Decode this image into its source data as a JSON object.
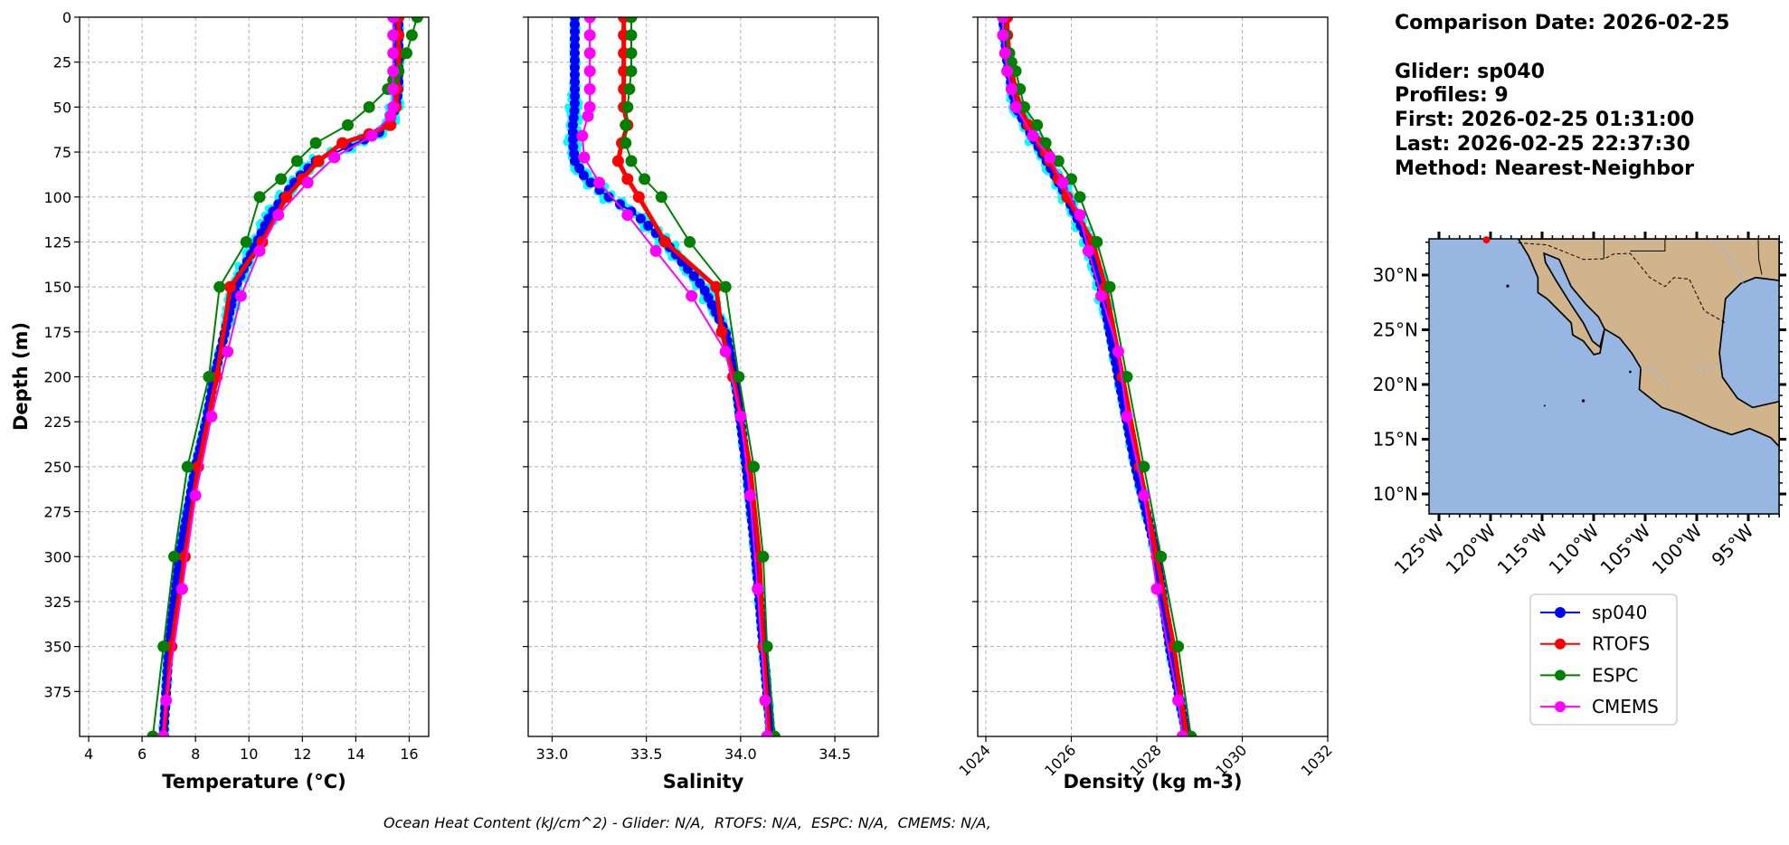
{
  "info": {
    "comparison_date": "Comparison Date: 2026-02-25",
    "glider": "Glider: sp040",
    "profiles": "Profiles: 9",
    "first": "First: 2026-02-25 01:31:00",
    "last": "Last: 2026-02-25 22:37:30",
    "method": "Method: Nearest-Neighbor"
  },
  "footer": "Ocean Heat Content (kJ/cm^2) - Glider: N/A,  RTOFS: N/A,  ESPC: N/A,  CMEMS: N/A,",
  "colors": {
    "sp040": "#0000ff",
    "RTOFS": "#ff0000",
    "ESPC": "#008000",
    "CMEMS": "#ff00ff",
    "profiles": "#00ffff",
    "ocean": "#97b6e1",
    "land": "#d1b48c"
  },
  "chart_data": [
    {
      "type": "line",
      "key": "temperature",
      "xlabel": "Temperature (°C)",
      "ylabel": "Depth (m)",
      "xlim": [
        3.66,
        16.73
      ],
      "ylim": [
        400,
        0
      ],
      "grid": true,
      "xticks": [
        "4",
        "6",
        "8",
        "10",
        "12",
        "14",
        "16"
      ],
      "yticks": [
        "0",
        "25",
        "50",
        "75",
        "100",
        "125",
        "150",
        "175",
        "200",
        "225",
        "250",
        "275",
        "300",
        "325",
        "350",
        "375"
      ],
      "series": [
        {
          "name": "sp040",
          "depth": [
            0,
            40,
            50,
            60,
            65,
            70,
            75,
            80,
            90,
            100,
            110,
            125,
            140,
            150,
            175,
            200,
            225,
            250,
            275,
            300,
            325,
            350,
            375,
            400
          ],
          "values": [
            15.6,
            15.6,
            15.5,
            15.2,
            14.8,
            14.0,
            13.3,
            12.5,
            11.8,
            11.3,
            10.8,
            10.3,
            9.8,
            9.5,
            9.1,
            8.7,
            8.4,
            8.0,
            7.7,
            7.4,
            7.2,
            7.0,
            6.9,
            6.8
          ]
        },
        {
          "name": "RTOFS",
          "depth": [
            0,
            10,
            20,
            30,
            40,
            50,
            60,
            65,
            70,
            80,
            90,
            100,
            125,
            150,
            200,
            250,
            300,
            350,
            400
          ],
          "values": [
            15.6,
            15.6,
            15.6,
            15.6,
            15.55,
            15.5,
            15.3,
            14.5,
            13.5,
            12.6,
            12.0,
            11.4,
            10.5,
            9.3,
            8.8,
            8.1,
            7.6,
            7.1,
            6.8
          ]
        },
        {
          "name": "ESPC",
          "depth": [
            0,
            10,
            20,
            30,
            35,
            40,
            50,
            60,
            70,
            80,
            90,
            100,
            125,
            150,
            200,
            250,
            300,
            350,
            400
          ],
          "values": [
            16.3,
            16.1,
            15.9,
            15.6,
            15.4,
            15.2,
            14.5,
            13.7,
            12.5,
            11.8,
            11.2,
            10.4,
            9.9,
            8.9,
            8.5,
            7.7,
            7.2,
            6.8,
            6.4
          ]
        },
        {
          "name": "CMEMS",
          "depth": [
            0,
            10,
            20,
            30,
            40,
            50,
            55,
            66,
            78,
            92,
            110,
            130,
            155,
            186,
            222,
            266,
            318,
            380,
            400
          ],
          "values": [
            15.4,
            15.4,
            15.4,
            15.4,
            15.4,
            15.4,
            15.3,
            14.6,
            13.2,
            12.2,
            11.1,
            10.4,
            9.7,
            9.2,
            8.6,
            8.0,
            7.5,
            6.9,
            6.8
          ]
        }
      ]
    },
    {
      "type": "line",
      "key": "salinity",
      "xlabel": "Salinity",
      "ylabel": "",
      "xlim": [
        32.873,
        34.73
      ],
      "ylim": [
        400,
        0
      ],
      "grid": true,
      "xticks": [
        "33.0",
        "33.5",
        "34.0",
        "34.5"
      ],
      "series": [
        {
          "name": "sp040",
          "depth": [
            0,
            50,
            60,
            70,
            80,
            90,
            100,
            110,
            125,
            140,
            150,
            175,
            200,
            250,
            300,
            350,
            400
          ],
          "values": [
            33.12,
            33.12,
            33.11,
            33.11,
            33.12,
            33.18,
            33.3,
            33.45,
            33.6,
            33.72,
            33.8,
            33.92,
            33.97,
            34.03,
            34.08,
            34.12,
            34.16
          ]
        },
        {
          "name": "RTOFS",
          "depth": [
            0,
            10,
            20,
            30,
            40,
            50,
            60,
            70,
            80,
            90,
            100,
            125,
            150,
            175,
            200,
            250,
            300,
            350,
            400
          ],
          "values": [
            33.38,
            33.38,
            33.38,
            33.38,
            33.38,
            33.38,
            33.4,
            33.37,
            33.35,
            33.4,
            33.46,
            33.6,
            33.87,
            33.9,
            33.96,
            34.05,
            34.1,
            34.12,
            34.15
          ]
        },
        {
          "name": "ESPC",
          "depth": [
            0,
            10,
            20,
            30,
            40,
            50,
            60,
            70,
            80,
            90,
            100,
            125,
            150,
            200,
            250,
            300,
            350,
            400
          ],
          "values": [
            33.42,
            33.42,
            33.42,
            33.42,
            33.41,
            33.4,
            33.39,
            33.39,
            33.42,
            33.49,
            33.58,
            33.73,
            33.92,
            33.99,
            34.07,
            34.12,
            34.14,
            34.18
          ]
        },
        {
          "name": "CMEMS",
          "depth": [
            0,
            10,
            20,
            30,
            40,
            50,
            55,
            66,
            78,
            92,
            110,
            130,
            155,
            186,
            222,
            266,
            318,
            380,
            400
          ],
          "values": [
            33.2,
            33.2,
            33.2,
            33.2,
            33.2,
            33.2,
            33.19,
            33.16,
            33.17,
            33.25,
            33.4,
            33.55,
            33.74,
            33.92,
            34.0,
            34.05,
            34.09,
            34.13,
            34.14
          ]
        }
      ]
    },
    {
      "type": "line",
      "key": "density",
      "xlabel": "Density (kg m-3)",
      "ylabel": "",
      "xlim": [
        1023.81,
        1032
      ],
      "ylim": [
        400,
        0
      ],
      "grid": true,
      "xticks": [
        "1024",
        "1026",
        "1028",
        "1030",
        "1032"
      ],
      "series": [
        {
          "name": "sp040",
          "depth": [
            0,
            25,
            50,
            75,
            100,
            125,
            150,
            200,
            250,
            300,
            350,
            400
          ],
          "values": [
            1024.4,
            1024.5,
            1024.7,
            1025.3,
            1025.9,
            1026.4,
            1026.7,
            1027.1,
            1027.5,
            1028.0,
            1028.3,
            1028.7
          ]
        },
        {
          "name": "RTOFS",
          "depth": [
            0,
            10,
            20,
            30,
            40,
            50,
            60,
            70,
            75,
            80,
            90,
            100,
            125,
            150,
            200,
            250,
            300,
            350,
            400
          ],
          "values": [
            1024.5,
            1024.5,
            1024.55,
            1024.6,
            1024.7,
            1024.8,
            1025.0,
            1025.3,
            1025.4,
            1025.5,
            1025.7,
            1025.9,
            1026.5,
            1026.8,
            1027.2,
            1027.6,
            1028.0,
            1028.4,
            1028.7
          ]
        },
        {
          "name": "ESPC",
          "depth": [
            0,
            10,
            20,
            25,
            30,
            40,
            50,
            60,
            70,
            80,
            90,
            100,
            125,
            150,
            200,
            250,
            300,
            350,
            400
          ],
          "values": [
            1024.4,
            1024.45,
            1024.55,
            1024.6,
            1024.7,
            1024.8,
            1024.9,
            1025.2,
            1025.4,
            1025.7,
            1026.0,
            1026.2,
            1026.6,
            1026.9,
            1027.3,
            1027.7,
            1028.1,
            1028.5,
            1028.8
          ]
        },
        {
          "name": "CMEMS",
          "depth": [
            0,
            10,
            20,
            30,
            40,
            50,
            66,
            78,
            92,
            110,
            130,
            155,
            186,
            222,
            266,
            318,
            380,
            400
          ],
          "values": [
            1024.4,
            1024.4,
            1024.45,
            1024.5,
            1024.6,
            1024.7,
            1025.1,
            1025.5,
            1025.8,
            1026.2,
            1026.4,
            1026.7,
            1027.1,
            1027.3,
            1027.7,
            1028.0,
            1028.5,
            1028.6
          ]
        }
      ]
    }
  ],
  "map": {
    "lon_range": [
      -125.96,
      -92.0
    ],
    "lat_range": [
      8.2,
      33.3
    ],
    "lat_labels": [
      {
        "v": 10,
        "t": "10°N"
      },
      {
        "v": 15,
        "t": "15°N"
      },
      {
        "v": 20,
        "t": "20°N"
      },
      {
        "v": 25,
        "t": "25°N"
      },
      {
        "v": 30,
        "t": "30°N"
      }
    ],
    "lon_labels": [
      {
        "v": -125,
        "t": "125°W"
      },
      {
        "v": -120,
        "t": "120°W"
      },
      {
        "v": -115,
        "t": "115°W"
      },
      {
        "v": -110,
        "t": "110°W"
      },
      {
        "v": -105,
        "t": "105°W"
      },
      {
        "v": -100,
        "t": "100°W"
      },
      {
        "v": -95,
        "t": "95°W"
      }
    ],
    "glider_position": {
      "lon": -120.4,
      "lat": 33.3
    }
  },
  "legend": [
    "sp040",
    "RTOFS",
    "ESPC",
    "CMEMS"
  ]
}
